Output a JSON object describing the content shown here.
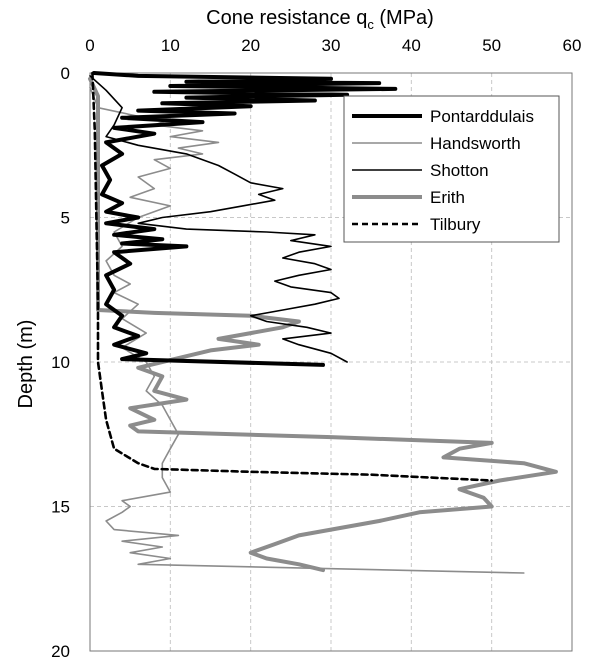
{
  "chart_data": {
    "type": "line",
    "title": "Cone resistance q",
    "title_subscript": "c",
    "title_unit": " (MPa)",
    "ylabel": "Depth (m)",
    "xlim": [
      0,
      60
    ],
    "ylim": [
      0,
      20
    ],
    "y_inverted": true,
    "x_axis_position": "top",
    "x_ticks": [
      "0",
      "10",
      "20",
      "30",
      "40",
      "50",
      "60"
    ],
    "y_ticks": [
      "0",
      "5",
      "10",
      "15",
      "20"
    ],
    "grid": true,
    "legend_position": "top-right",
    "series": [
      {
        "name": "Pontarddulais",
        "color": "#000000",
        "style": "thick",
        "points": [
          [
            0.5,
            0
          ],
          [
            6,
            0.1
          ],
          [
            30,
            0.2
          ],
          [
            12,
            0.3
          ],
          [
            36,
            0.35
          ],
          [
            10,
            0.45
          ],
          [
            38,
            0.55
          ],
          [
            8,
            0.65
          ],
          [
            32,
            0.75
          ],
          [
            12,
            0.85
          ],
          [
            28,
            0.95
          ],
          [
            9,
            1.05
          ],
          [
            20,
            1.15
          ],
          [
            6,
            1.3
          ],
          [
            18,
            1.4
          ],
          [
            4,
            1.55
          ],
          [
            14,
            1.7
          ],
          [
            3,
            1.9
          ],
          [
            8,
            2.1
          ],
          [
            2,
            2.4
          ],
          [
            4,
            2.8
          ],
          [
            1.5,
            3.2
          ],
          [
            2.5,
            3.7
          ],
          [
            1.5,
            4.2
          ],
          [
            4,
            4.5
          ],
          [
            2,
            4.8
          ],
          [
            6,
            5.0
          ],
          [
            2,
            5.2
          ],
          [
            8,
            5.4
          ],
          [
            3,
            5.6
          ],
          [
            9,
            5.75
          ],
          [
            4,
            5.9
          ],
          [
            12,
            6.0
          ],
          [
            3,
            6.2
          ],
          [
            5,
            6.6
          ],
          [
            2,
            7.0
          ],
          [
            3,
            7.5
          ],
          [
            2,
            8.0
          ],
          [
            4,
            8.4
          ],
          [
            3,
            8.8
          ],
          [
            6,
            9.1
          ],
          [
            3,
            9.4
          ],
          [
            7,
            9.7
          ],
          [
            4,
            9.9
          ],
          [
            29,
            10.1
          ]
        ]
      },
      {
        "name": "Handsworth",
        "color": "#8c8c8c",
        "style": "thin",
        "points": [
          [
            0,
            0.5
          ],
          [
            1,
            1.2
          ],
          [
            6,
            1.5
          ],
          [
            10,
            1.6
          ],
          [
            8,
            1.8
          ],
          [
            14,
            2.0
          ],
          [
            10,
            2.2
          ],
          [
            16,
            2.4
          ],
          [
            11,
            2.6
          ],
          [
            14,
            2.8
          ],
          [
            8,
            3.0
          ],
          [
            10,
            3.3
          ],
          [
            6,
            3.6
          ],
          [
            8,
            4.0
          ],
          [
            5,
            4.3
          ],
          [
            10,
            4.6
          ],
          [
            6,
            5.0
          ],
          [
            3,
            5.5
          ],
          [
            4,
            6.0
          ],
          [
            2,
            6.5
          ],
          [
            3,
            7.0
          ],
          [
            5,
            7.3
          ],
          [
            3,
            7.6
          ],
          [
            6,
            8.0
          ],
          [
            4,
            8.5
          ],
          [
            7,
            9.0
          ],
          [
            4,
            9.5
          ],
          [
            7,
            10.0
          ],
          [
            8,
            10.5
          ],
          [
            7,
            11.0
          ],
          [
            9,
            11.5
          ],
          [
            10,
            12.0
          ],
          [
            11,
            12.5
          ],
          [
            10,
            13.0
          ],
          [
            9,
            13.5
          ],
          [
            9,
            14.0
          ],
          [
            10,
            14.5
          ],
          [
            4,
            14.8
          ],
          [
            5,
            15.0
          ],
          [
            4,
            15.2
          ],
          [
            2,
            15.5
          ],
          [
            3,
            15.8
          ],
          [
            11,
            16.0
          ],
          [
            4,
            16.2
          ],
          [
            9,
            16.4
          ],
          [
            5,
            16.6
          ],
          [
            10,
            16.8
          ],
          [
            6,
            17.0
          ],
          [
            54,
            17.3
          ]
        ]
      },
      {
        "name": "Shotton",
        "color": "#000000",
        "style": "thin",
        "points": [
          [
            0,
            0.1
          ],
          [
            2,
            0.6
          ],
          [
            4,
            1.2
          ],
          [
            3,
            1.8
          ],
          [
            2,
            2.2
          ],
          [
            6,
            2.5
          ],
          [
            12,
            2.8
          ],
          [
            16,
            3.2
          ],
          [
            18,
            3.5
          ],
          [
            20,
            3.8
          ],
          [
            24,
            4.0
          ],
          [
            21,
            4.2
          ],
          [
            23,
            4.4
          ],
          [
            19,
            4.6
          ],
          [
            15,
            4.8
          ],
          [
            9,
            5.0
          ],
          [
            6,
            5.2
          ],
          [
            12,
            5.4
          ],
          [
            22,
            5.5
          ],
          [
            28,
            5.6
          ],
          [
            25,
            5.8
          ],
          [
            30,
            6.0
          ],
          [
            26,
            6.2
          ],
          [
            24,
            6.4
          ],
          [
            28,
            6.6
          ],
          [
            30,
            6.8
          ],
          [
            26,
            7.0
          ],
          [
            23,
            7.2
          ],
          [
            25,
            7.4
          ],
          [
            30,
            7.6
          ],
          [
            31,
            7.8
          ],
          [
            28,
            8.0
          ],
          [
            24,
            8.2
          ],
          [
            20,
            8.4
          ],
          [
            22,
            8.6
          ],
          [
            27,
            8.8
          ],
          [
            30,
            9.0
          ],
          [
            24,
            9.2
          ],
          [
            26,
            9.4
          ],
          [
            30,
            9.7
          ],
          [
            32,
            10.0
          ]
        ]
      },
      {
        "name": "Erith",
        "color": "#8c8c8c",
        "style": "thick",
        "points": [
          [
            0,
            0.2
          ],
          [
            1,
            0.8
          ],
          [
            1,
            1.5
          ],
          [
            1,
            2.5
          ],
          [
            1,
            3.5
          ],
          [
            1,
            4.5
          ],
          [
            1,
            5.5
          ],
          [
            1,
            6.5
          ],
          [
            1,
            7.5
          ],
          [
            1,
            8.2
          ],
          [
            8,
            8.3
          ],
          [
            20,
            8.4
          ],
          [
            26,
            8.6
          ],
          [
            24,
            8.8
          ],
          [
            20,
            9.0
          ],
          [
            16,
            9.2
          ],
          [
            21,
            9.4
          ],
          [
            15,
            9.6
          ],
          [
            12,
            9.8
          ],
          [
            9,
            10.0
          ],
          [
            6,
            10.2
          ],
          [
            9,
            10.5
          ],
          [
            8,
            11.0
          ],
          [
            12,
            11.3
          ],
          [
            5,
            11.6
          ],
          [
            8,
            12.0
          ],
          [
            5,
            12.2
          ],
          [
            6,
            12.4
          ],
          [
            30,
            12.6
          ],
          [
            50,
            12.8
          ],
          [
            46,
            13.0
          ],
          [
            44,
            13.3
          ],
          [
            54,
            13.5
          ],
          [
            58,
            13.8
          ],
          [
            51,
            14.1
          ],
          [
            46,
            14.4
          ],
          [
            49,
            14.7
          ],
          [
            50,
            15.0
          ],
          [
            41,
            15.2
          ],
          [
            36,
            15.5
          ],
          [
            30,
            15.8
          ],
          [
            26,
            16.0
          ],
          [
            23,
            16.3
          ],
          [
            20,
            16.6
          ],
          [
            22,
            16.8
          ],
          [
            26,
            17.0
          ],
          [
            29,
            17.2
          ]
        ]
      },
      {
        "name": "Tilbury",
        "color": "#000000",
        "style": "dashed",
        "points": [
          [
            0.3,
            0
          ],
          [
            0.6,
            2
          ],
          [
            0.8,
            5
          ],
          [
            1,
            8
          ],
          [
            1,
            10
          ],
          [
            1.5,
            11
          ],
          [
            2,
            12
          ],
          [
            2.5,
            12.5
          ],
          [
            3,
            13.0
          ],
          [
            6,
            13.5
          ],
          [
            8,
            13.7
          ],
          [
            20,
            13.8
          ],
          [
            35,
            13.9
          ],
          [
            50,
            14.1
          ]
        ]
      }
    ]
  }
}
